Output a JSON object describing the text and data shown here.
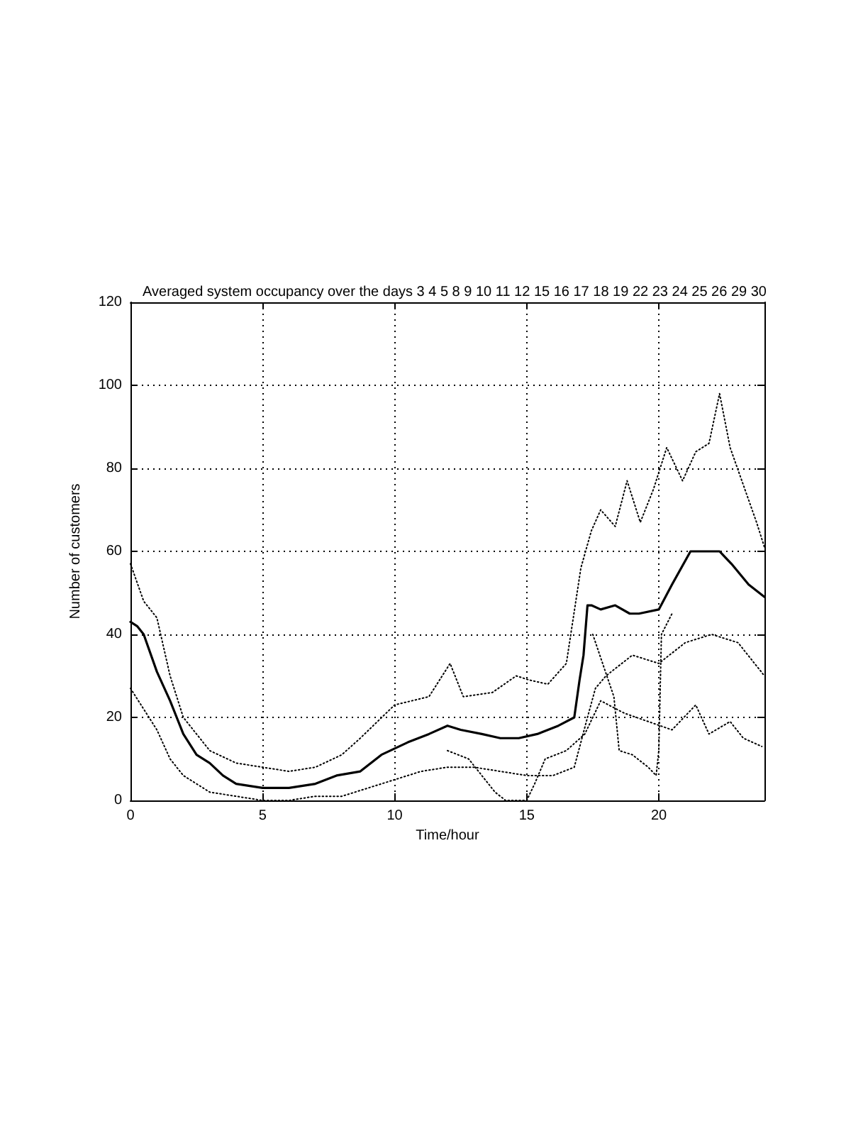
{
  "chart_data": {
    "type": "line",
    "title": "Averaged system occupancy over the days 3 4 5 8 9 10 11 12 15 16 17 18 19 22 23 24 25 26 29 30",
    "xlabel": "Time/hour",
    "ylabel": "Number of customers",
    "xlim": [
      0,
      24
    ],
    "xticks": [
      0,
      5,
      10,
      15,
      20
    ],
    "ylim": [
      0,
      120
    ],
    "yticks": [
      0,
      20,
      40,
      60,
      80,
      100,
      120
    ],
    "grid": true,
    "marker": "none",
    "series": [
      {
        "color": "#000000",
        "line_style": "dotted",
        "x": [
          0,
          0.5,
          1,
          1.5,
          2,
          3,
          4,
          5,
          6,
          7,
          8,
          8.7,
          10,
          11.3,
          12.1,
          12.6,
          13.7,
          14.6,
          15.1,
          15.8,
          16.5,
          17.05,
          17.45,
          17.8,
          18.35,
          18.8,
          19.3,
          19.8,
          20.3,
          20.9,
          21.4,
          21.9,
          22.3,
          22.7,
          23.2,
          23.7,
          24
        ],
        "values": [
          57,
          48,
          44,
          30,
          20,
          12,
          9,
          8,
          7,
          8,
          11,
          15,
          23,
          25,
          33,
          25,
          26,
          30,
          29,
          28,
          33,
          56,
          65,
          70,
          66,
          77,
          67,
          75,
          85,
          77,
          84,
          86,
          98,
          85,
          76,
          67,
          61
        ]
      },
      {
        "color": "#000000",
        "line_style": "dotted",
        "x": [
          0,
          0.5,
          1,
          1.5,
          2,
          2.5,
          3,
          4,
          5,
          6,
          7,
          8,
          9,
          10,
          11,
          12,
          13,
          14,
          15,
          16,
          16.8,
          17.3,
          17.6,
          18,
          19,
          20,
          21,
          22,
          23,
          24
        ],
        "values": [
          27,
          22,
          17,
          10,
          6,
          4,
          2,
          1,
          0,
          0,
          1,
          1,
          3,
          5,
          7,
          8,
          8,
          7,
          6,
          6,
          8,
          20,
          27,
          30,
          35,
          33,
          38,
          40,
          38,
          30
        ]
      },
      {
        "color": "#000000",
        "line_style": "dotted",
        "x": [
          12,
          12.8,
          13.3,
          13.8,
          14.2,
          15,
          15.3,
          15.7,
          16.5,
          17.2,
          17.8,
          18.7,
          19.6,
          20.5,
          21.4,
          21.9,
          22.7,
          23.2,
          23.9
        ],
        "values": [
          12,
          10,
          6,
          2,
          0,
          0,
          4,
          10,
          12,
          16,
          24,
          21,
          19,
          17,
          23,
          16,
          19,
          15,
          13
        ]
      },
      {
        "color": "#000000",
        "line_style": "dotted",
        "x": [
          17.5,
          18.3,
          18.5,
          19,
          19.6,
          19.9,
          20,
          20.1,
          20.5
        ],
        "values": [
          40,
          25,
          12,
          11,
          8,
          6,
          12,
          40,
          45
        ]
      },
      {
        "color": "#000000",
        "line_style": "solid",
        "x": [
          0,
          0.25,
          0.5,
          1,
          1.5,
          2,
          2.5,
          3,
          3.5,
          4,
          5,
          6,
          7,
          7.8,
          8.7,
          9.5,
          10.5,
          11.3,
          12,
          12.5,
          13.3,
          14,
          14.7,
          15.4,
          16.2,
          16.8,
          17,
          17.15,
          17.3,
          17.45,
          17.8,
          18.35,
          18.9,
          19.25,
          20,
          20.5,
          21.2,
          21.75,
          22.3,
          22.75,
          23.4,
          24
        ],
        "values": [
          43,
          42,
          40,
          31,
          24,
          16,
          11,
          9,
          6,
          4,
          3,
          3,
          4,
          6,
          7,
          11,
          14,
          16,
          18,
          17,
          16,
          15,
          15,
          16,
          18,
          20,
          29,
          35,
          47,
          47,
          46,
          47,
          45,
          45,
          46,
          52,
          60,
          60,
          60,
          57,
          52,
          49
        ]
      }
    ]
  }
}
